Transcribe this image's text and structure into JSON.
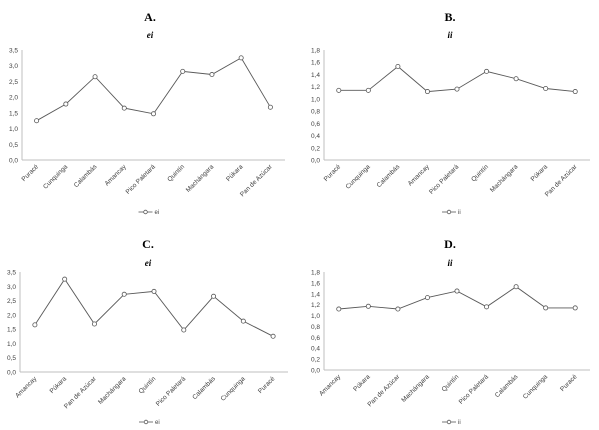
{
  "chart_data": [
    {
      "letter": "A.",
      "title": "ei",
      "type": "line",
      "categories": [
        "Puracé",
        "Cunquinga",
        "Calambás",
        "Amancay",
        "Pico Paletará",
        "Quintín",
        "Machángara",
        "Púkara",
        "Pan de Azúcar"
      ],
      "series": [
        {
          "name": "ei",
          "values": [
            1.25,
            1.78,
            2.65,
            1.65,
            1.47,
            2.82,
            2.72,
            3.25,
            1.68
          ]
        }
      ],
      "ylim": [
        0,
        3.5
      ],
      "yticks": [
        "0,0",
        "0,5",
        "1,0",
        "1,5",
        "2,0",
        "2,5",
        "3,0",
        "3,5"
      ],
      "legend": "ei",
      "legend_position": "bottom",
      "grid": false
    },
    {
      "letter": "B.",
      "title": "ii",
      "type": "line",
      "categories": [
        "Puracé",
        "Cunquinga",
        "Calambás",
        "Amancay",
        "Pico Paletará",
        "Quintín",
        "Machángara",
        "Púkara",
        "Pan de Azúcar"
      ],
      "series": [
        {
          "name": "ii",
          "values": [
            1.14,
            1.14,
            1.53,
            1.12,
            1.16,
            1.45,
            1.33,
            1.17,
            1.12
          ]
        }
      ],
      "ylim": [
        0,
        1.8
      ],
      "yticks": [
        "0,0",
        "0,2",
        "0,4",
        "0,6",
        "0,8",
        "1,0",
        "1,2",
        "1,4",
        "1,6",
        "1,8"
      ],
      "legend": "ii",
      "legend_position": "bottom",
      "grid": false
    },
    {
      "letter": "C.",
      "title": "ei",
      "type": "line",
      "categories": [
        "Amancay",
        "Púkara",
        "Pan de Azúcar",
        "Machángara",
        "Quintín",
        "Pico Paletará",
        "Calambás",
        "Cunquinga",
        "Puracé"
      ],
      "series": [
        {
          "name": "ei",
          "values": [
            1.65,
            3.25,
            1.68,
            2.72,
            2.82,
            1.47,
            2.65,
            1.78,
            1.25
          ]
        }
      ],
      "ylim": [
        0,
        3.5
      ],
      "yticks": [
        "0,0",
        "0,5",
        "1,0",
        "1,5",
        "2,0",
        "2,5",
        "3,0",
        "3,5"
      ],
      "legend": "ei",
      "legend_position": "bottom",
      "grid": false
    },
    {
      "letter": "D.",
      "title": "ii",
      "type": "line",
      "categories": [
        "Amancay",
        "Púkara",
        "Pan de Azúcar",
        "Machángara",
        "Quintín",
        "Pico Paletará",
        "Calambás",
        "Cunquinga",
        "Puracé"
      ],
      "series": [
        {
          "name": "ii",
          "values": [
            1.12,
            1.17,
            1.12,
            1.33,
            1.45,
            1.16,
            1.53,
            1.14,
            1.14
          ]
        }
      ],
      "ylim": [
        0,
        1.8
      ],
      "yticks": [
        "0,0",
        "0,2",
        "0,4",
        "0,6",
        "0,8",
        "1,0",
        "1,2",
        "1,4",
        "1,6",
        "1,8"
      ],
      "legend": "ii",
      "legend_position": "bottom",
      "grid": false
    }
  ]
}
